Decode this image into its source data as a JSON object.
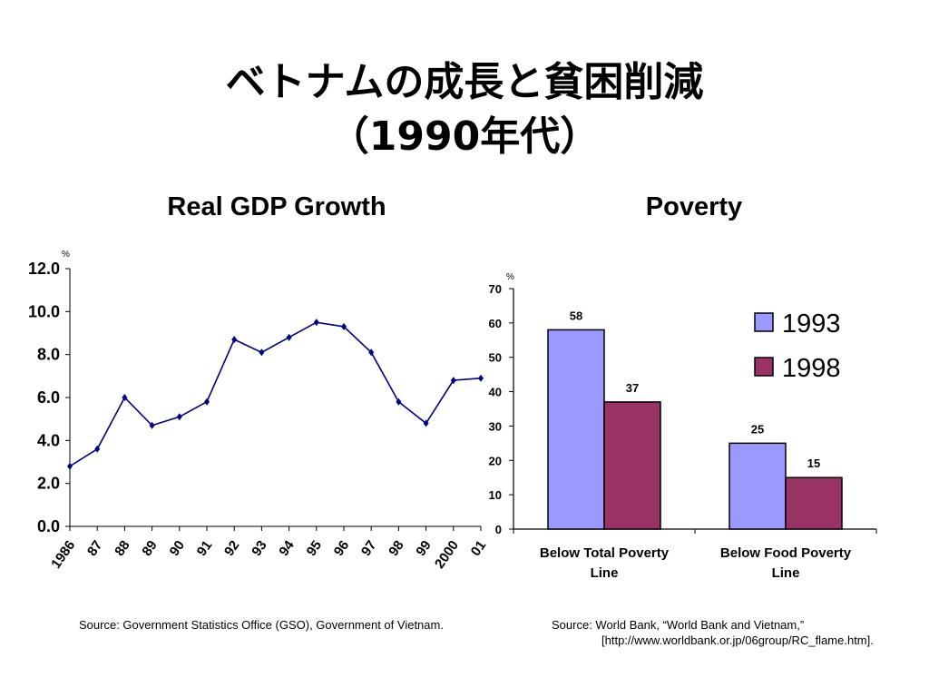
{
  "title_line1": "ベトナムの成長と貧困削減",
  "title_line2": "（1990年代）",
  "chart_data": [
    {
      "type": "line",
      "title": "Real GDP Growth",
      "ylabel": "%",
      "ylim": [
        0,
        12
      ],
      "y_ticks": [
        "0.0",
        "2.0",
        "4.0",
        "6.0",
        "8.0",
        "10.0",
        "12.0"
      ],
      "categories": [
        "1986",
        "87",
        "88",
        "89",
        "90",
        "91",
        "92",
        "93",
        "94",
        "95",
        "96",
        "97",
        "98",
        "99",
        "2000",
        "01"
      ],
      "values": [
        2.8,
        3.6,
        6.0,
        4.7,
        5.1,
        5.8,
        8.7,
        8.1,
        8.8,
        9.5,
        9.3,
        8.1,
        5.8,
        4.8,
        6.8,
        6.9
      ],
      "line_color": "#000080",
      "grid": false,
      "source": "Source: Government Statistics Office (GSO), Government of Vietnam."
    },
    {
      "type": "bar",
      "title": "Poverty",
      "ylabel": "%",
      "ylim": [
        0,
        70
      ],
      "y_ticks": [
        "0",
        "10",
        "20",
        "30",
        "40",
        "50",
        "60",
        "70"
      ],
      "categories": [
        "Below Total Poverty Line",
        "Below Food Poverty Line"
      ],
      "category_lines": [
        [
          "Below Total Poverty",
          "Line"
        ],
        [
          "Below Food Poverty",
          "Line"
        ]
      ],
      "series": [
        {
          "name": "1993",
          "values": [
            58,
            25
          ],
          "color": "#9999FF"
        },
        {
          "name": "1998",
          "values": [
            37,
            15
          ],
          "color": "#993366"
        }
      ],
      "data_labels": [
        [
          "58",
          "25"
        ],
        [
          "37",
          "15"
        ]
      ],
      "legend": "top-right",
      "grid": false,
      "source": "Source: World Bank, “World Bank and Vietnam,”",
      "source_url": "[http://www.worldbank.or.jp/06group/RC_flame.htm]."
    }
  ]
}
